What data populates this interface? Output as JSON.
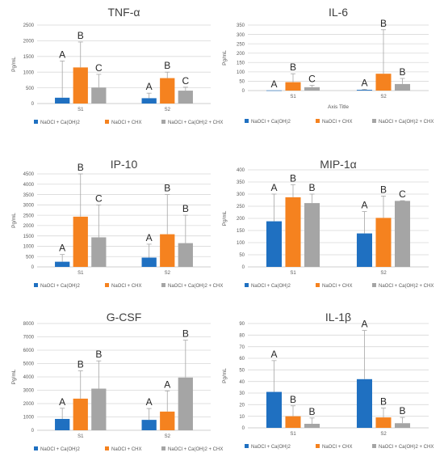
{
  "colors": {
    "series": [
      "#1f70c1",
      "#f5821f",
      "#a5a5a5"
    ],
    "grid": "#d9d9d9",
    "axis": "#bfbfbf",
    "text": "#595959"
  },
  "chart_data": [
    {
      "type": "bar",
      "title": "TNF-α",
      "ylabel": "Pg/mL",
      "xlabel": "",
      "ylim": [
        0,
        2500
      ],
      "yticks": [
        0,
        500,
        1000,
        1500,
        2000,
        2500
      ],
      "categories": [
        "S1",
        "S2"
      ],
      "series": [
        {
          "name": "NaOCl + Ca(OH)2",
          "values": [
            185,
            170
          ],
          "errors": [
            1170,
            160
          ],
          "letters": [
            "A",
            "A"
          ]
        },
        {
          "name": "NaOCl + CHX",
          "values": [
            1150,
            810
          ],
          "errors": [
            810,
            190
          ],
          "letters": [
            "B",
            "B"
          ]
        },
        {
          "name": "NaOCl + Ca(OH)2 + CHX",
          "values": [
            510,
            410
          ],
          "errors": [
            420,
            110
          ],
          "letters": [
            "C",
            "C"
          ]
        }
      ],
      "legend": "bottom"
    },
    {
      "type": "bar",
      "title": "IL-6",
      "ylabel": "Pg/mL",
      "xlabel": "Axis Title",
      "ylim": [
        0,
        350
      ],
      "yticks": [
        0,
        50,
        100,
        150,
        200,
        250,
        300,
        350
      ],
      "categories": [
        "S1",
        "S2"
      ],
      "series": [
        {
          "name": "NaOCl + Ca(OH)2",
          "values": [
            1,
            4
          ],
          "errors": [
            0,
            3
          ],
          "letters": [
            "A",
            "A"
          ]
        },
        {
          "name": "NaOCl + CHX",
          "values": [
            45,
            90
          ],
          "errors": [
            45,
            235
          ],
          "letters": [
            "B",
            "B"
          ]
        },
        {
          "name": "NaOCl + Ca(OH)2 + CHX",
          "values": [
            18,
            35
          ],
          "errors": [
            10,
            30
          ],
          "letters": [
            "C",
            "B"
          ]
        }
      ],
      "legend": "bottom"
    },
    {
      "type": "bar",
      "title": "IP-10",
      "ylabel": "Pg/mL",
      "xlabel": "",
      "ylim": [
        0,
        4500
      ],
      "yticks": [
        0,
        500,
        1000,
        1500,
        2000,
        2500,
        3000,
        3500,
        4000,
        4500
      ],
      "categories": [
        "S1",
        "S2"
      ],
      "series": [
        {
          "name": "NaOCl + Ca(OH)2",
          "values": [
            250,
            450
          ],
          "errors": [
            350,
            650
          ],
          "letters": [
            "A",
            "A"
          ]
        },
        {
          "name": "NaOCl + CHX",
          "values": [
            2430,
            1580
          ],
          "errors": [
            2070,
            1920
          ],
          "letters": [
            "B",
            "B"
          ]
        },
        {
          "name": "NaOCl + Ca(OH)2 + CHX",
          "values": [
            1430,
            1150
          ],
          "errors": [
            1570,
            1350
          ],
          "letters": [
            "C",
            "B"
          ]
        }
      ],
      "legend": "bottom"
    },
    {
      "type": "bar",
      "title": "MIP-1α",
      "ylabel": "Pg/mL",
      "xlabel": "",
      "ylim": [
        0,
        400
      ],
      "yticks": [
        0,
        50,
        100,
        150,
        200,
        250,
        300,
        350,
        400
      ],
      "categories": [
        "S1",
        "S2"
      ],
      "series": [
        {
          "name": "NaOCl + Ca(OH)2",
          "values": [
            188,
            138
          ],
          "errors": [
            112,
            90
          ],
          "letters": [
            "A",
            "A"
          ]
        },
        {
          "name": "NaOCl + CHX",
          "values": [
            287,
            202
          ],
          "errors": [
            52,
            90
          ],
          "letters": [
            "B",
            "B"
          ]
        },
        {
          "name": "NaOCl + Ca(OH)2 + CHX",
          "values": [
            263,
            272
          ],
          "errors": [
            37,
            1
          ],
          "letters": [
            "B",
            "C"
          ]
        }
      ],
      "legend": "bottom"
    },
    {
      "type": "bar",
      "title": "G-CSF",
      "ylabel": "Pg/mL",
      "xlabel": "",
      "ylim": [
        0,
        8000
      ],
      "yticks": [
        0,
        1000,
        2000,
        3000,
        4000,
        5000,
        6000,
        7000,
        8000
      ],
      "categories": [
        "S1",
        "S2"
      ],
      "series": [
        {
          "name": "NaOCl + Ca(OH)2",
          "values": [
            850,
            780
          ],
          "errors": [
            800,
            850
          ],
          "letters": [
            "A",
            "A"
          ]
        },
        {
          "name": "NaOCl + CHX",
          "values": [
            2370,
            1400
          ],
          "errors": [
            2080,
            1550
          ],
          "letters": [
            "B",
            "A"
          ]
        },
        {
          "name": "NaOCl + Ca(OH)2 + CHX",
          "values": [
            3120,
            3950
          ],
          "errors": [
            2080,
            2800
          ],
          "letters": [
            "B",
            "B"
          ]
        }
      ],
      "legend": "bottom"
    },
    {
      "type": "bar",
      "title": "IL-1β",
      "ylabel": "Pg/mL",
      "xlabel": "",
      "ylim": [
        0,
        90
      ],
      "yticks": [
        0,
        10,
        20,
        30,
        40,
        50,
        60,
        70,
        80,
        90
      ],
      "categories": [
        "S1",
        "S2"
      ],
      "series": [
        {
          "name": "NaOCl + Ca(OH)2",
          "values": [
            31,
            42
          ],
          "errors": [
            27,
            42
          ],
          "letters": [
            "A",
            "A"
          ]
        },
        {
          "name": "NaOCl + CHX",
          "values": [
            10,
            9
          ],
          "errors": [
            9,
            8
          ],
          "letters": [
            "B",
            "B"
          ]
        },
        {
          "name": "NaOCl + Ca(OH)2 + CHX",
          "values": [
            3.5,
            4
          ],
          "errors": [
            5,
            5
          ],
          "letters": [
            "B",
            "B"
          ]
        }
      ],
      "legend": "bottom"
    }
  ]
}
